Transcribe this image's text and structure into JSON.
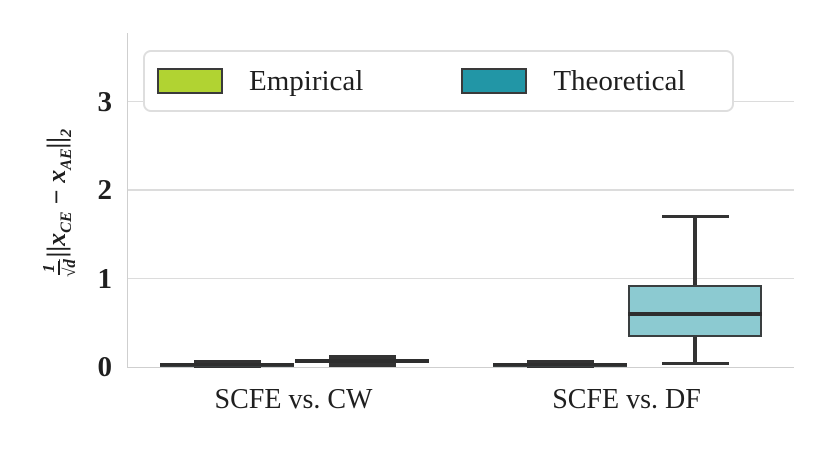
{
  "colors": {
    "empirical": "#b1d332",
    "theoretical": "#2296a6",
    "theoretical_box_fill": "#8ccad1",
    "line": "#333333",
    "grid": "#dcdcdc",
    "text": "#1f1f1f"
  },
  "legend": {
    "items": [
      {
        "label": "Empirical",
        "color": "#b1d332"
      },
      {
        "label": "Theoretical",
        "color": "#2296a6"
      }
    ]
  },
  "axes": {
    "ylabel": {
      "frac_num": "1",
      "frac_sqrt": "√",
      "frac_sqrt_arg": "d",
      "norm_open": "||",
      "x1": "x",
      "sub1": "CE",
      "minus": " − ",
      "x2": "x",
      "sub2": "AE",
      "norm_close": "||",
      "norm_sub": "2"
    }
  },
  "chart_data": {
    "type": "boxplot",
    "title": "",
    "categories": [
      "SCFE vs. CW",
      "SCFE vs. DF"
    ],
    "ylabel": "(1/sqrt(d))||x_CE - x_AE||_2",
    "yticks": [
      0,
      1,
      2,
      3
    ],
    "ylim": [
      0,
      3.77
    ],
    "grid": "horizontal",
    "legend_position": "upper left",
    "series": [
      {
        "name": "Empirical",
        "box_fill": "#b1d332",
        "stats": [
          {
            "whislo": 0.01,
            "q1": 0.02,
            "med": 0.03,
            "q3": 0.045,
            "whishi": 0.06
          },
          {
            "whislo": 0.01,
            "q1": 0.02,
            "med": 0.03,
            "q3": 0.045,
            "whishi": 0.06
          }
        ]
      },
      {
        "name": "Theoretical",
        "box_fill": "#8ccad1",
        "stats": [
          {
            "whislo": 0.02,
            "q1": 0.05,
            "med": 0.07,
            "q3": 0.09,
            "whishi": 0.115
          },
          {
            "whislo": 0.04,
            "q1": 0.34,
            "med": 0.6,
            "q3": 0.93,
            "whishi": 1.7
          }
        ]
      }
    ]
  }
}
